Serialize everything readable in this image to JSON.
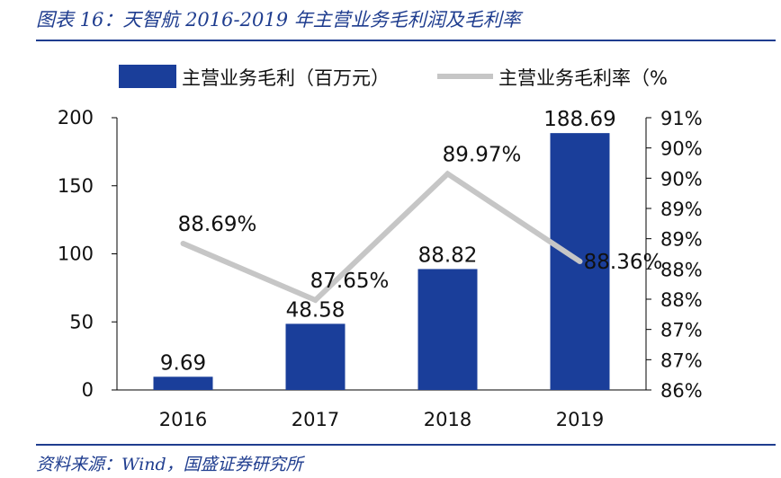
{
  "header": {
    "title": "图表 16：天智航 2016-2019 年主营业务毛利润及毛利率"
  },
  "footer": {
    "source": "资料来源：Wind，国盛证券研究所"
  },
  "colors": {
    "bar": "#1a3e9a",
    "line": "#c6c6c6",
    "text": "#111111",
    "accent": "#1f3d8f"
  },
  "chart_data": {
    "type": "bar",
    "categories": [
      "2016",
      "2017",
      "2018",
      "2019"
    ],
    "series": [
      {
        "name": "主营业务毛利（百万元）",
        "type": "bar",
        "axis": "left",
        "values": [
          9.69,
          48.58,
          88.82,
          188.69
        ],
        "labels": [
          "9.69",
          "48.58",
          "88.82",
          "188.69"
        ]
      },
      {
        "name": "主营业务毛利率（%",
        "type": "line",
        "axis": "right",
        "values": [
          88.69,
          87.65,
          89.97,
          88.36
        ],
        "labels": [
          "88.69%",
          "87.65%",
          "89.97%",
          "88.36%"
        ]
      }
    ],
    "y_left": {
      "ylim": [
        0,
        200
      ],
      "ticks": [
        "0",
        "50",
        "100",
        "150",
        "200"
      ]
    },
    "y_right": {
      "ylim": [
        86,
        91
      ],
      "ticks": [
        "86%",
        "87%",
        "87%",
        "88%",
        "88%",
        "89%",
        "89%",
        "90%",
        "90%",
        "91%"
      ]
    },
    "legend": "top",
    "grid": false
  }
}
